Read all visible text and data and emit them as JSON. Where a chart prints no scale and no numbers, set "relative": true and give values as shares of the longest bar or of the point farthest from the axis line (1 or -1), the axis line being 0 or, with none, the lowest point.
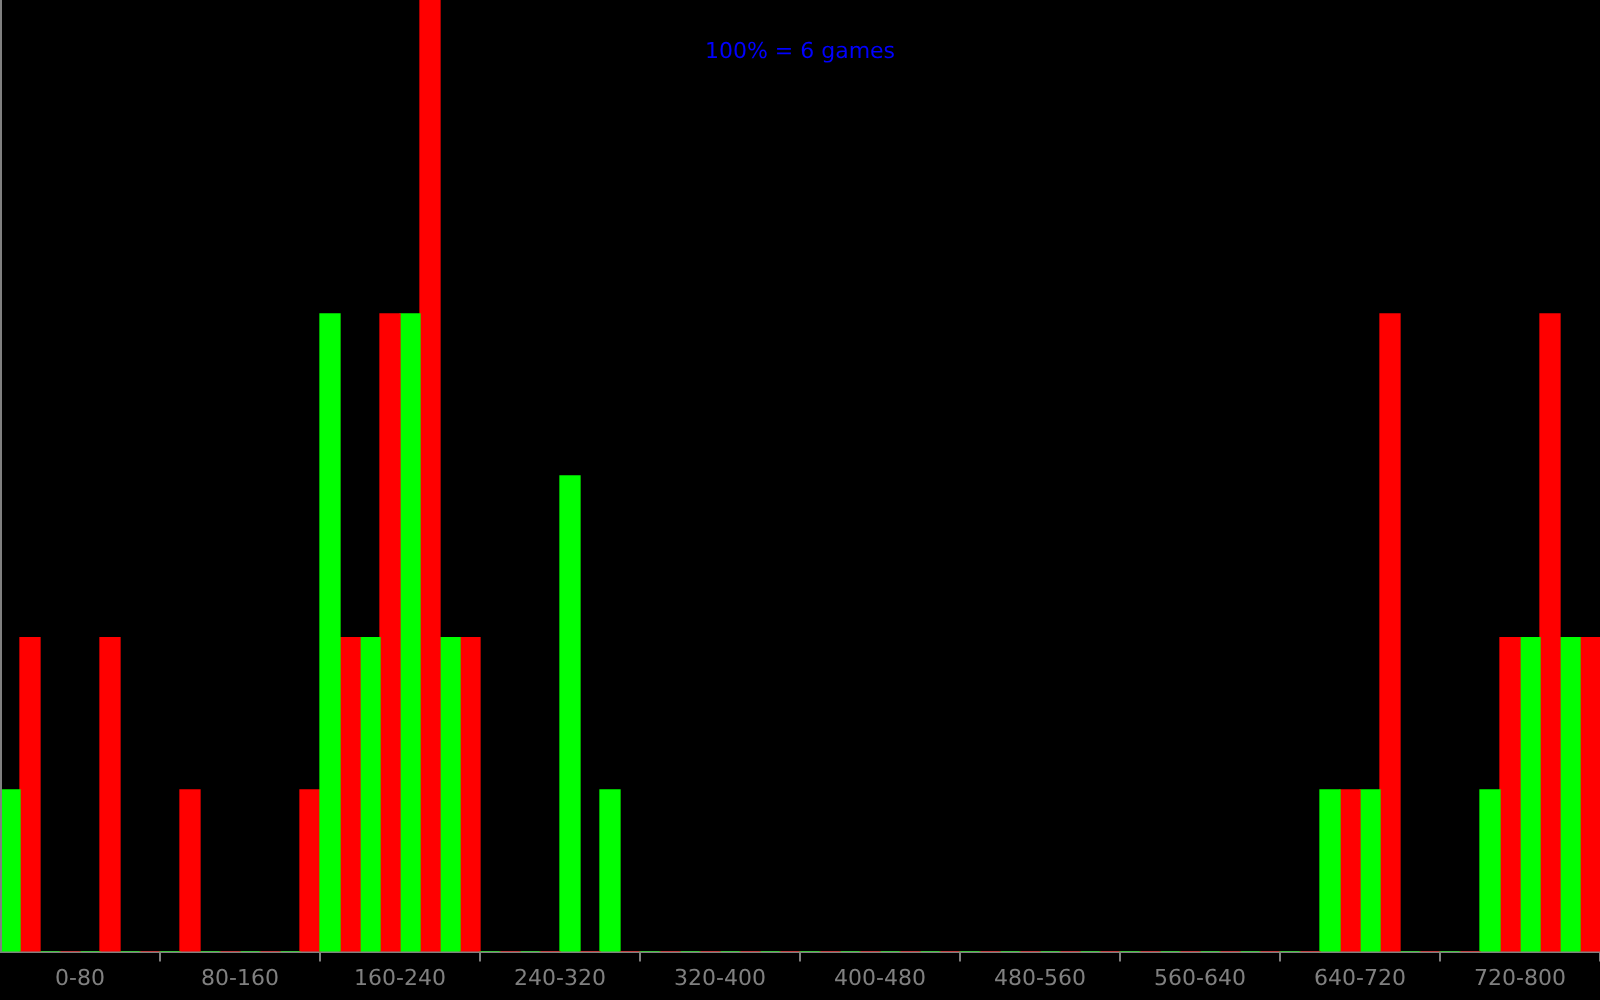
{
  "chart_data": {
    "type": "bar",
    "relative": true,
    "annotations": [
      "100% = 6 games"
    ],
    "categories": [
      "0-80",
      "80-160",
      "160-240",
      "240-320",
      "320-400",
      "400-480",
      "480-560",
      "560-640",
      "640-720",
      "720-800"
    ],
    "series": [
      {
        "color": "#00ff00",
        "values": [
          0.17,
          0,
          0.67,
          0,
          0,
          0,
          0,
          0,
          0,
          0
        ]
      },
      {
        "color": "#ff0000",
        "values": [
          0.33,
          0.17,
          0.33,
          0,
          0,
          0,
          0,
          0,
          0,
          0
        ]
      },
      {
        "color": "#00ff00",
        "values": [
          0,
          0,
          0.33,
          0,
          0,
          0,
          0,
          0,
          0.17,
          0.17
        ]
      },
      {
        "color": "#ff0000",
        "values": [
          0,
          0,
          0.67,
          0,
          0,
          0,
          0,
          0,
          0.17,
          0.33
        ]
      },
      {
        "color": "#00ff00",
        "values": [
          0,
          0,
          0.67,
          0.5,
          0,
          0,
          0,
          0,
          0.17,
          0.33
        ]
      },
      {
        "color": "#ff0000",
        "values": [
          0.33,
          0,
          1,
          0,
          0,
          0,
          0,
          0,
          0.67,
          0.67
        ]
      },
      {
        "color": "#00ff00",
        "values": [
          0,
          0,
          0.33,
          0.17,
          0,
          0,
          0,
          0,
          0,
          0.33
        ]
      },
      {
        "color": "#ff0000",
        "values": [
          0,
          0.17,
          0.33,
          0,
          0,
          0,
          0,
          0,
          0,
          0.33
        ]
      }
    ],
    "grid": false,
    "legend": false
  }
}
